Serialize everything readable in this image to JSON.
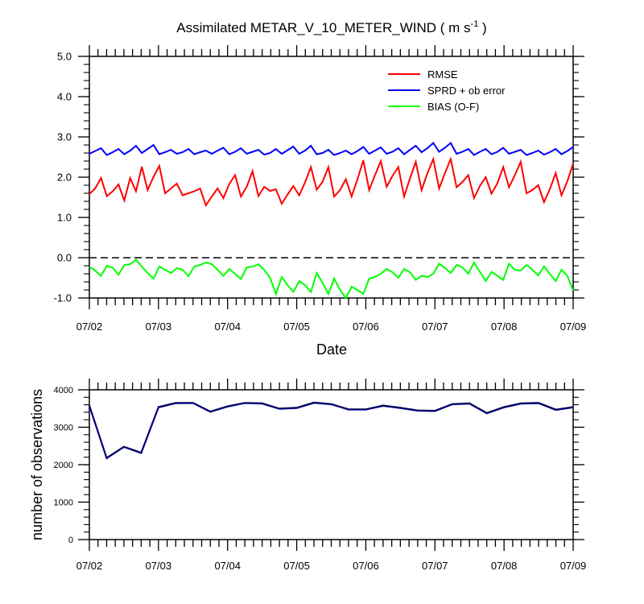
{
  "chart_data": [
    {
      "type": "line",
      "title_main": "Assimilated METAR_V_10_METER_WIND ( m s",
      "title_sup": "-1",
      "title_end": " )",
      "xlabel": "Date",
      "ylabel": "",
      "ylim": [
        -1.0,
        5.0
      ],
      "yticks": [
        "5.0",
        "4.0",
        "3.0",
        "2.0",
        "1.0",
        "0.0",
        "-1.0"
      ],
      "xticks": [
        "07/02",
        "07/03",
        "07/04",
        "07/05",
        "07/06",
        "07/07",
        "07/08",
        "07/09"
      ],
      "zero_line": true,
      "legend_position": "top-right",
      "series": [
        {
          "name": "RMSE",
          "color": "#ff0000",
          "values": [
            1.58,
            1.72,
            1.98,
            1.53,
            1.65,
            1.82,
            1.42,
            1.98,
            1.65,
            2.26,
            1.68,
            2.01,
            2.28,
            1.6,
            1.72,
            1.84,
            1.55,
            1.6,
            1.65,
            1.72,
            1.3,
            1.52,
            1.72,
            1.48,
            1.83,
            2.05,
            1.52,
            1.76,
            2.15,
            1.53,
            1.76,
            1.66,
            1.7,
            1.34,
            1.57,
            1.78,
            1.55,
            1.87,
            2.25,
            1.69,
            1.88,
            2.25,
            1.52,
            1.68,
            1.95,
            1.52,
            1.95,
            2.42,
            1.68,
            2.05,
            2.4,
            1.76,
            2.03,
            2.25,
            1.52,
            1.97,
            2.38,
            1.68,
            2.1,
            2.45,
            1.72,
            2.1,
            2.45,
            1.75,
            1.88,
            2.05,
            1.48,
            1.78,
            2.0,
            1.59,
            1.85,
            2.25,
            1.75,
            2.05,
            2.38,
            1.6,
            1.68,
            1.8,
            1.38,
            1.7,
            2.1,
            1.55,
            1.9,
            2.34
          ]
        },
        {
          "name": "SPRD + ob error",
          "color": "#0000ff",
          "values": [
            2.58,
            2.65,
            2.72,
            2.55,
            2.62,
            2.7,
            2.57,
            2.66,
            2.78,
            2.6,
            2.7,
            2.8,
            2.57,
            2.62,
            2.68,
            2.58,
            2.62,
            2.7,
            2.57,
            2.62,
            2.66,
            2.58,
            2.66,
            2.73,
            2.57,
            2.63,
            2.72,
            2.58,
            2.63,
            2.68,
            2.56,
            2.6,
            2.7,
            2.58,
            2.67,
            2.76,
            2.58,
            2.66,
            2.78,
            2.57,
            2.6,
            2.68,
            2.55,
            2.6,
            2.66,
            2.57,
            2.65,
            2.75,
            2.58,
            2.66,
            2.74,
            2.58,
            2.63,
            2.72,
            2.57,
            2.68,
            2.78,
            2.62,
            2.72,
            2.85,
            2.63,
            2.73,
            2.85,
            2.58,
            2.63,
            2.7,
            2.55,
            2.63,
            2.7,
            2.57,
            2.63,
            2.73,
            2.58,
            2.63,
            2.68,
            2.55,
            2.6,
            2.66,
            2.56,
            2.62,
            2.7,
            2.57,
            2.65,
            2.75
          ]
        },
        {
          "name": "BIAS (O-F)",
          "color": "#00ff00",
          "values": [
            -0.22,
            -0.32,
            -0.45,
            -0.2,
            -0.25,
            -0.42,
            -0.18,
            -0.16,
            -0.05,
            -0.22,
            -0.38,
            -0.52,
            -0.22,
            -0.3,
            -0.38,
            -0.26,
            -0.3,
            -0.46,
            -0.22,
            -0.18,
            -0.12,
            -0.16,
            -0.3,
            -0.45,
            -0.28,
            -0.4,
            -0.53,
            -0.24,
            -0.22,
            -0.16,
            -0.3,
            -0.5,
            -0.9,
            -0.48,
            -0.68,
            -0.85,
            -0.58,
            -0.68,
            -0.85,
            -0.38,
            -0.62,
            -0.9,
            -0.52,
            -0.8,
            -1.0,
            -0.72,
            -0.8,
            -0.9,
            -0.52,
            -0.48,
            -0.4,
            -0.28,
            -0.36,
            -0.5,
            -0.28,
            -0.36,
            -0.55,
            -0.45,
            -0.48,
            -0.4,
            -0.15,
            -0.25,
            -0.38,
            -0.18,
            -0.24,
            -0.4,
            -0.12,
            -0.35,
            -0.58,
            -0.35,
            -0.45,
            -0.55,
            -0.15,
            -0.3,
            -0.32,
            -0.18,
            -0.3,
            -0.44,
            -0.22,
            -0.4,
            -0.58,
            -0.3,
            -0.45,
            -0.82
          ]
        }
      ]
    },
    {
      "type": "line",
      "title": "",
      "xlabel": "",
      "ylabel": "number of observations",
      "ylim": [
        0,
        4000
      ],
      "yticks": [
        "4000",
        "3000",
        "2000",
        "1000",
        "0"
      ],
      "xticks": [
        "07/02",
        "07/03",
        "07/04",
        "07/05",
        "07/06",
        "07/07",
        "07/08",
        "07/09"
      ],
      "series": [
        {
          "color": "#000000",
          "values": [
            3580,
            2180,
            2480,
            2320,
            3540,
            3650,
            3650,
            3420,
            3560,
            3650,
            3640,
            3500,
            3520,
            3660,
            3620,
            3480,
            3480,
            3580,
            3520,
            3450,
            3440,
            3620,
            3640,
            3380,
            3540,
            3640,
            3650,
            3470,
            3540
          ]
        },
        {
          "color": "#000080",
          "values": [
            3570,
            2170,
            2470,
            2310,
            3530,
            3640,
            3645,
            3410,
            3550,
            3645,
            3630,
            3490,
            3510,
            3650,
            3610,
            3470,
            3470,
            3570,
            3510,
            3440,
            3430,
            3610,
            3630,
            3370,
            3530,
            3630,
            3640,
            3460,
            3530
          ]
        }
      ]
    }
  ]
}
